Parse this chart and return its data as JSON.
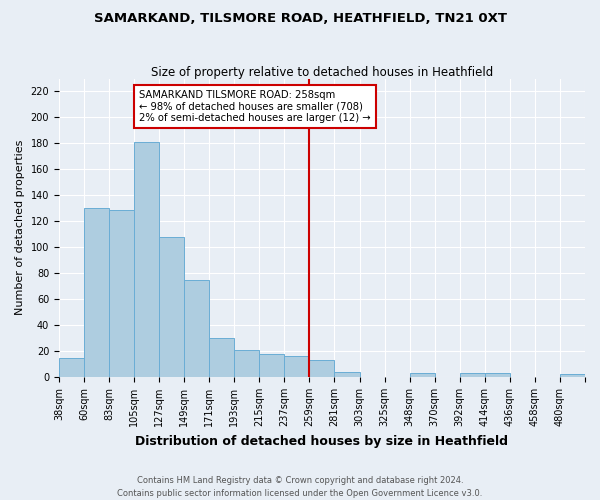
{
  "title": "SAMARKAND, TILSMORE ROAD, HEATHFIELD, TN21 0XT",
  "subtitle": "Size of property relative to detached houses in Heathfield",
  "xlabel": "Distribution of detached houses by size in Heathfield",
  "ylabel": "Number of detached properties",
  "bin_labels": [
    "38sqm",
    "60sqm",
    "83sqm",
    "105sqm",
    "127sqm",
    "149sqm",
    "171sqm",
    "193sqm",
    "215sqm",
    "237sqm",
    "259sqm",
    "281sqm",
    "303sqm",
    "325sqm",
    "348sqm",
    "370sqm",
    "392sqm",
    "414sqm",
    "436sqm",
    "458sqm",
    "480sqm"
  ],
  "values": [
    15,
    130,
    129,
    181,
    108,
    75,
    30,
    21,
    18,
    16,
    13,
    4,
    0,
    0,
    3,
    0,
    3,
    3,
    0,
    0,
    2
  ],
  "bar_color": "#aecde0",
  "bar_edge_color": "#6aadd5",
  "ylim": [
    0,
    230
  ],
  "yticks": [
    0,
    20,
    40,
    60,
    80,
    100,
    120,
    140,
    160,
    180,
    200,
    220
  ],
  "property_line_index": 10,
  "property_line_color": "#cc0000",
  "annotation_title": "SAMARKAND TILSMORE ROAD: 258sqm",
  "annotation_line1": "← 98% of detached houses are smaller (708)",
  "annotation_line2": "2% of semi-detached houses are larger (12) →",
  "annotation_box_edge_color": "#cc0000",
  "footer_line1": "Contains HM Land Registry data © Crown copyright and database right 2024.",
  "footer_line2": "Contains public sector information licensed under the Open Government Licence v3.0.",
  "bg_color": "#e8eef5",
  "grid_color": "#ffffff",
  "title_fontsize": 9.5,
  "subtitle_fontsize": 8.5,
  "xlabel_fontsize": 9,
  "ylabel_fontsize": 8,
  "tick_fontsize": 7,
  "footer_fontsize": 6
}
